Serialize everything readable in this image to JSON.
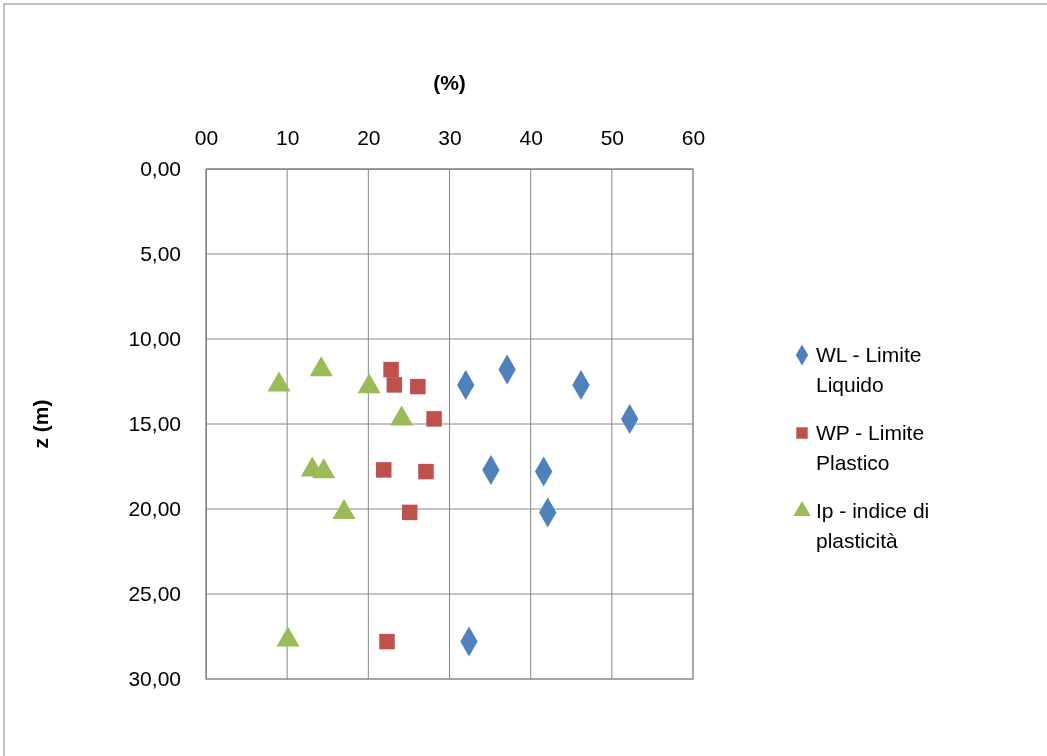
{
  "chart_data": {
    "type": "scatter",
    "xlabel": "(%)",
    "ylabel": "z (m)",
    "xlim": [
      0,
      60
    ],
    "xticks": [
      {
        "value": 0,
        "label": "00"
      },
      10,
      20,
      30,
      40,
      50,
      60
    ],
    "ylim": [
      30,
      0
    ],
    "yticks": [
      {
        "value": 0,
        "label": "0,00"
      },
      {
        "value": 5,
        "label": "5,00"
      },
      {
        "value": 10,
        "label": "10,00"
      },
      {
        "value": 15,
        "label": "15,00"
      },
      {
        "value": 20,
        "label": "20,00"
      },
      {
        "value": 25,
        "label": "25,00"
      },
      {
        "value": 30,
        "label": "30,00"
      }
    ],
    "grid": true,
    "legend": "right",
    "series": [
      {
        "name": "WL - Limite Liquido",
        "color": "#4f81bd",
        "marker": "diamond",
        "x": [
          37.1,
          32.0,
          46.2,
          52.2,
          35.1,
          41.6,
          42.1,
          32.4
        ],
        "values": [
          11.8,
          12.7,
          12.7,
          14.7,
          17.7,
          17.8,
          20.2,
          27.8
        ]
      },
      {
        "name": "WP - Limite Plastico",
        "color": "#c0504d",
        "marker": "square",
        "x": [
          22.8,
          23.2,
          26.1,
          28.1,
          21.9,
          27.1,
          25.1,
          22.3
        ],
        "values": [
          11.8,
          12.7,
          12.8,
          14.7,
          17.7,
          17.8,
          20.2,
          27.8
        ]
      },
      {
        "name": "Ip - indice di plasticità",
        "color": "#9bbb59",
        "marker": "triangle",
        "x": [
          9.0,
          14.2,
          20.1,
          24.1,
          13.1,
          14.5,
          17.0,
          10.1
        ],
        "values": [
          12.7,
          11.8,
          12.8,
          14.7,
          17.7,
          17.8,
          20.2,
          27.7
        ]
      }
    ]
  }
}
